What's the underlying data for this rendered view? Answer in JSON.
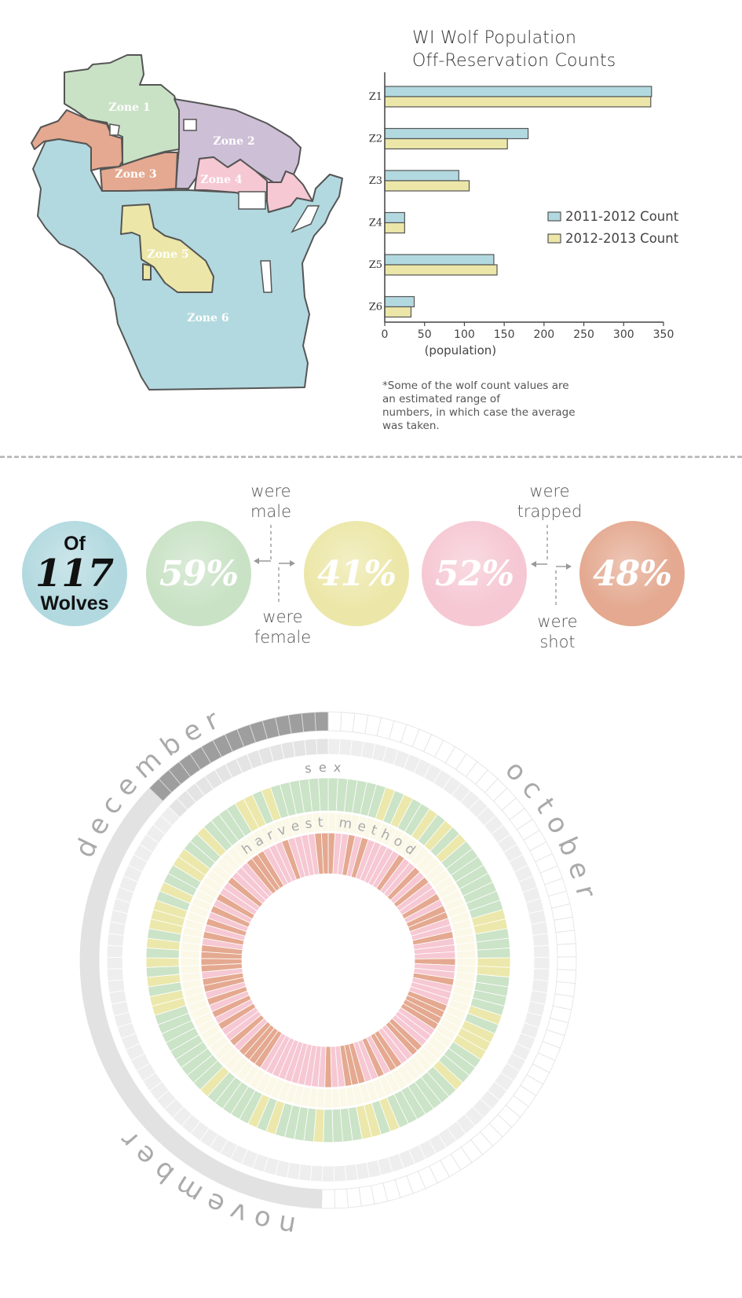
{
  "map": {
    "zones": [
      {
        "name": "Zone 1",
        "color": "#c9e2c5"
      },
      {
        "name": "Zone 2",
        "color": "#cdbfd6"
      },
      {
        "name": "Zone 3",
        "color": "#e4a990"
      },
      {
        "name": "Zone 4",
        "color": "#f6c8d3"
      },
      {
        "name": "Zone 5",
        "color": "#ece7a8"
      },
      {
        "name": "Zone 6",
        "color": "#b2d9df"
      }
    ]
  },
  "chart_data": {
    "type": "bar",
    "orientation": "horizontal",
    "title": "WI Wolf Population\nOff-Reservation Counts",
    "title_lines": [
      "WI Wolf Population",
      "Off-Reservation Counts"
    ],
    "categories": [
      "Z1",
      "Z2",
      "Z3",
      "Z4",
      "Z5",
      "Z6"
    ],
    "series": [
      {
        "name": "2011-2012 Count",
        "color": "#b2d9df",
        "values": [
          335,
          180,
          93,
          25,
          137,
          37
        ]
      },
      {
        "name": "2012-2013 Count",
        "color": "#ece7a8",
        "values": [
          334,
          154,
          106,
          25,
          141,
          33
        ]
      }
    ],
    "xlabel": "(population)",
    "ylabel": "",
    "xlim": [
      0,
      350
    ],
    "xticks": [
      "0",
      "50",
      "100",
      "150",
      "200",
      "250",
      "300",
      "350"
    ],
    "legend_position": "right",
    "grid": false
  },
  "footnote": "*Some of the wolf count values are\nan estimated range of\nnumbers, in which case the average\nwas taken.",
  "stats": {
    "total_lines": [
      "Of",
      "117",
      "Wolves"
    ],
    "male_pct": "59%",
    "female_pct": "41%",
    "trapped_pct": "52%",
    "shot_pct": "48%",
    "male_label": "were\nmale",
    "female_label": "were\nfemale",
    "trapped_label": "were\ntrapped",
    "shot_label": "were\nshot",
    "colors": {
      "total": "#b2d9df",
      "male": "#c9e2c5",
      "female": "#ece7a8",
      "trapped": "#f6c8d3",
      "shot": "#e4a990"
    }
  },
  "radial": {
    "month_labels": [
      "december",
      "october",
      "november"
    ],
    "ring_labels": [
      "sex",
      "harvest method"
    ],
    "month_colors": {
      "october": "#ffffff",
      "november": "#e2e2e2",
      "december": "#9e9e9e"
    },
    "sex_colors": {
      "male": "#c9e2c5",
      "female": "#ece7a8"
    },
    "harvest_colors": {
      "trapped": "#f6c8d3",
      "shot": "#e4a990"
    }
  }
}
